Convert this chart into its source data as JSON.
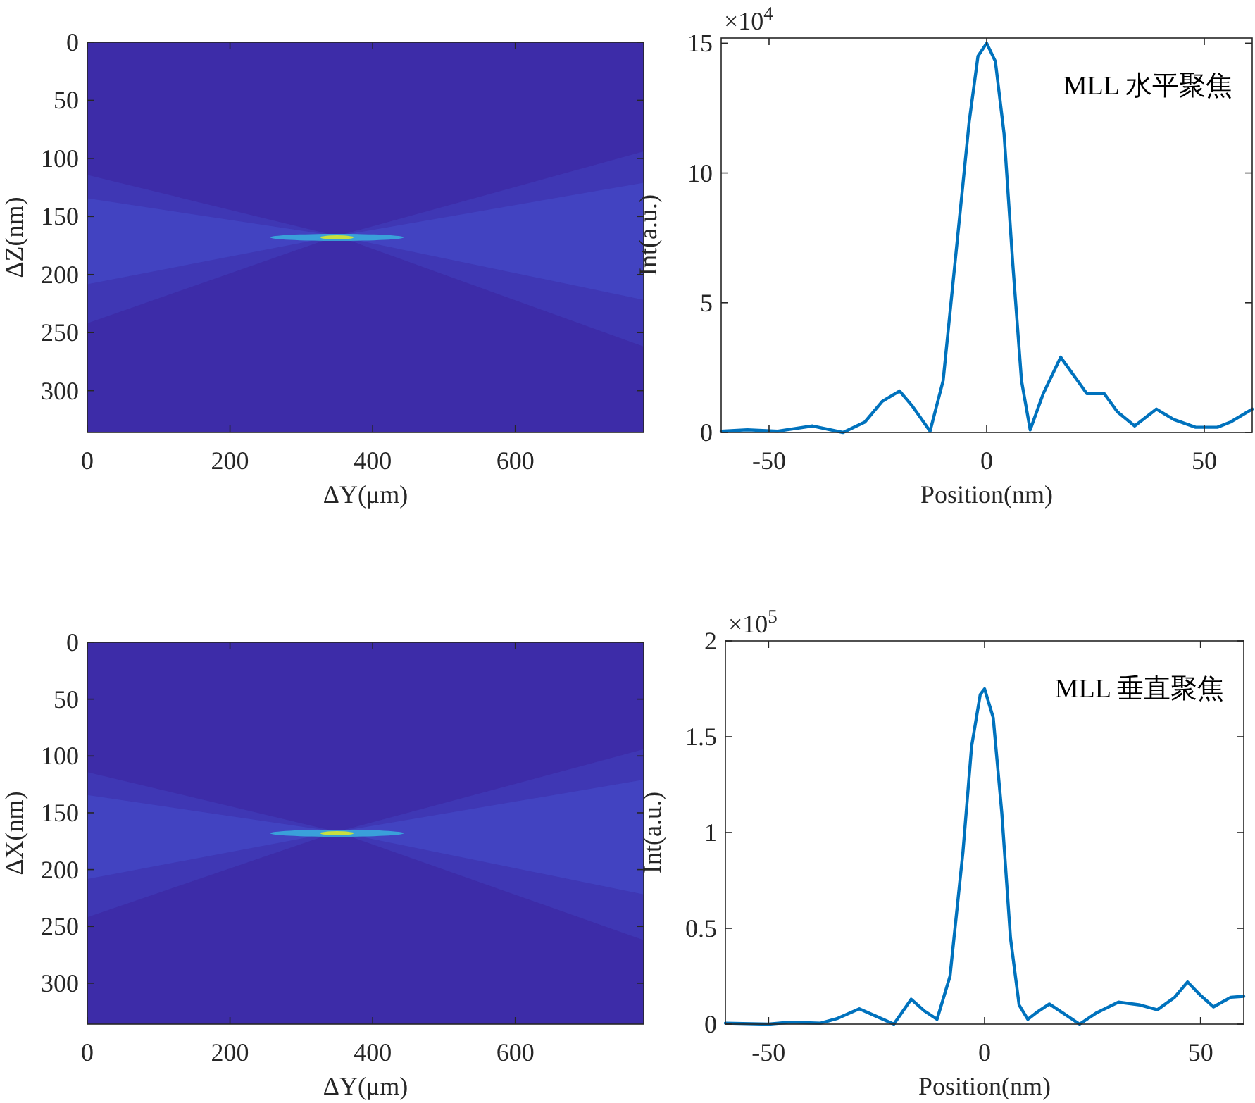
{
  "chart_data": [
    {
      "type": "heatmap",
      "xlabel": "ΔY(μm)",
      "ylabel": "ΔZ(nm)",
      "xlim": [
        0,
        780
      ],
      "ylim": [
        336,
        0
      ],
      "xticks": [
        0,
        200,
        400,
        600
      ],
      "yticks": [
        0,
        50,
        100,
        150,
        200,
        250,
        300
      ]
    },
    {
      "type": "line",
      "xlabel": "Position(nm)",
      "ylabel": "Int(a.u.)",
      "xlim": [
        -61,
        61
      ],
      "ylim": [
        0,
        15.2
      ],
      "xticks": [
        -50,
        0,
        50
      ],
      "yticks": [
        0,
        5,
        10,
        15
      ],
      "annotations": [
        "×10$^{4}$",
        "MLL 水平聚焦"
      ],
      "series": [
        {
          "color": "#0072bd",
          "x": [
            -61,
            -55,
            -48,
            -40,
            -33,
            -28,
            -24,
            -20,
            -17,
            -13,
            -10,
            -7,
            -4,
            -2,
            0,
            2,
            4,
            6,
            8,
            10,
            13,
            17,
            20,
            23,
            27,
            30,
            34,
            39,
            43,
            48,
            53,
            56,
            61
          ],
          "values": [
            0.05,
            0.1,
            0.05,
            0.25,
            0.0,
            0.4,
            1.2,
            1.6,
            1.0,
            0.05,
            2.0,
            7.0,
            12.0,
            14.5,
            15.0,
            14.3,
            11.5,
            6.5,
            2.0,
            0.1,
            1.5,
            2.9,
            2.2,
            1.5,
            1.5,
            0.8,
            0.25,
            0.9,
            0.5,
            0.2,
            0.2,
            0.4,
            0.9
          ]
        }
      ]
    },
    {
      "type": "heatmap",
      "xlabel": "ΔY(μm)",
      "ylabel": "ΔX(nm)",
      "xlim": [
        0,
        780
      ],
      "ylim": [
        336,
        0
      ],
      "xticks": [
        0,
        200,
        400,
        600
      ],
      "yticks": [
        0,
        50,
        100,
        150,
        200,
        250,
        300
      ]
    },
    {
      "type": "line",
      "xlabel": "Position(nm)",
      "ylabel": "Int(a.u.)",
      "xlim": [
        -60,
        60
      ],
      "ylim": [
        0,
        2
      ],
      "xticks": [
        -50,
        0,
        50
      ],
      "yticks": [
        0,
        0.5,
        1,
        1.5,
        2
      ],
      "annotations": [
        "×10$^{5}$",
        "MLL 垂直聚焦"
      ],
      "series": [
        {
          "color": "#0072bd",
          "x": [
            -60,
            -50,
            -45,
            -38,
            -34,
            -29,
            -25,
            -21,
            -17,
            -14,
            -11,
            -8,
            -5,
            -3,
            -1,
            0,
            2,
            4,
            6,
            8,
            10,
            12,
            15,
            18,
            22,
            26,
            31,
            36,
            40,
            44,
            47,
            50,
            53,
            57,
            60
          ],
          "values": [
            0.005,
            0.0,
            0.01,
            0.005,
            0.03,
            0.08,
            0.04,
            0.0,
            0.13,
            0.07,
            0.025,
            0.25,
            0.9,
            1.45,
            1.72,
            1.75,
            1.6,
            1.1,
            0.45,
            0.1,
            0.025,
            0.06,
            0.105,
            0.06,
            0.0,
            0.06,
            0.115,
            0.1,
            0.075,
            0.14,
            0.22,
            0.15,
            0.09,
            0.14,
            0.145
          ]
        }
      ]
    }
  ]
}
